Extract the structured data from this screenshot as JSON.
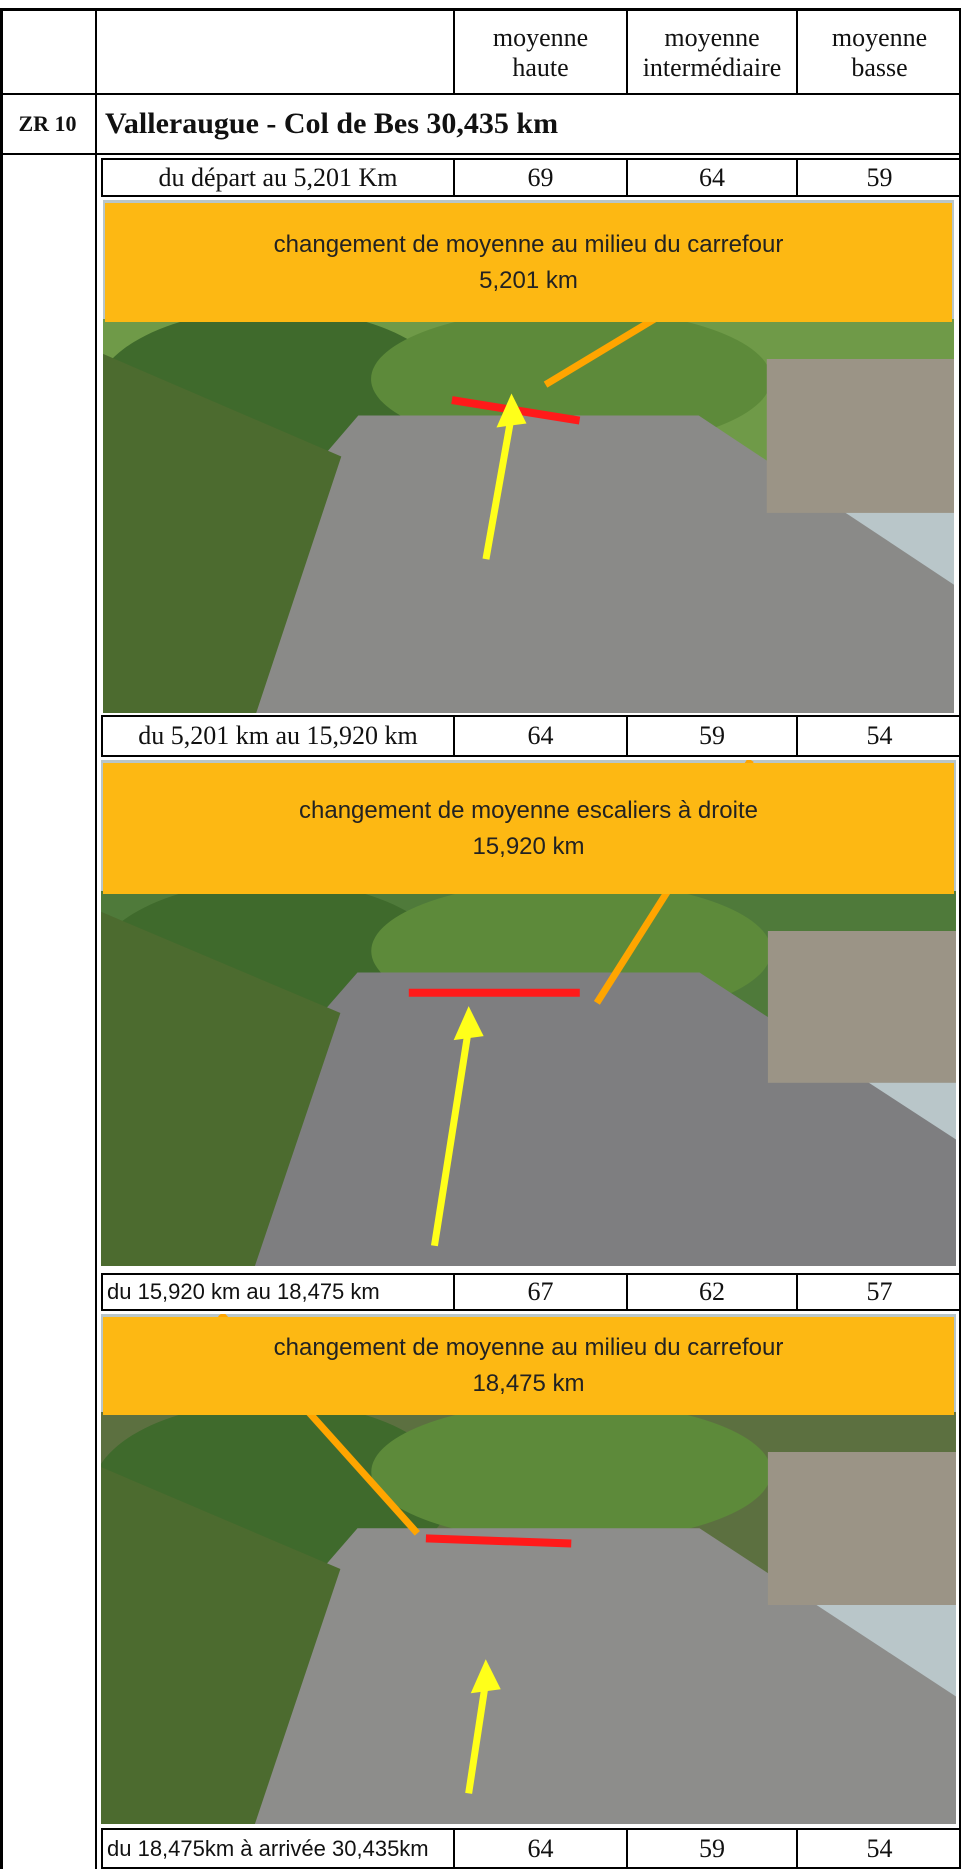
{
  "header": {
    "columns": [
      [
        "moyenne",
        "haute"
      ],
      [
        "moyenne",
        "intermédiaire"
      ],
      [
        "moyenne",
        "basse"
      ]
    ]
  },
  "section": {
    "code": "ZR 10",
    "title": "Valleraugue - Col de Bes 30,435 km"
  },
  "rows": [
    {
      "label": "du départ au 5,201 Km",
      "haute": "69",
      "intermediaire": "64",
      "basse": "59"
    },
    {
      "label": "du 5,201 km au 15,920 km",
      "haute": "64",
      "intermediaire": "59",
      "basse": "54"
    },
    {
      "label": "du 15,920 km au 18,475 km",
      "haute": "67",
      "intermediaire": "62",
      "basse": "57"
    },
    {
      "label": "du 18,475km à arrivée 30,435km",
      "haute": "64",
      "intermediaire": "59",
      "basse": "54"
    }
  ],
  "callouts": [
    [
      "changement de moyenne au milieu  du carrefour",
      "5,201 km"
    ],
    [
      "changement de moyenne  escaliers à droite",
      "15,920 km"
    ],
    [
      "changement de moyenne au milieu  du carrefour",
      "18,475 km"
    ]
  ]
}
